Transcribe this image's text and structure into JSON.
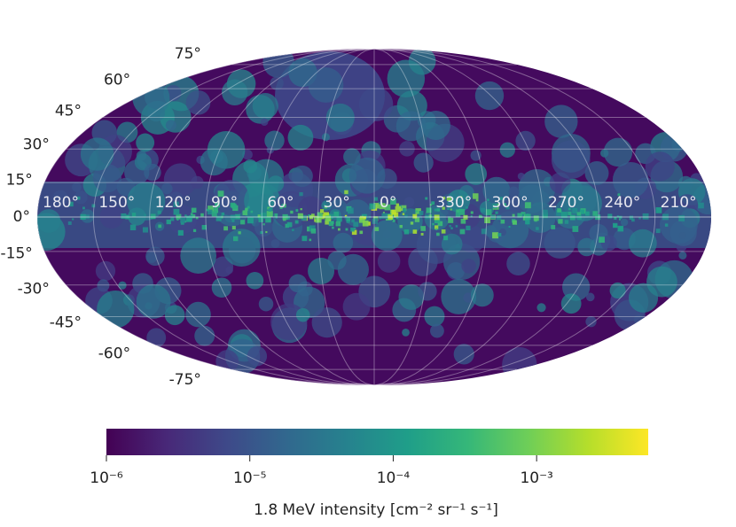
{
  "map": {
    "projection": "mollweide",
    "lat_ticks": [
      {
        "value": 75,
        "label": "75°"
      },
      {
        "value": 60,
        "label": "60°"
      },
      {
        "value": 45,
        "label": "45°"
      },
      {
        "value": 30,
        "label": "30°"
      },
      {
        "value": 15,
        "label": "15°"
      },
      {
        "value": 0,
        "label": "0°"
      },
      {
        "value": -15,
        "label": "-15°"
      },
      {
        "value": -30,
        "label": "-30°"
      },
      {
        "value": -45,
        "label": "-45°"
      },
      {
        "value": -60,
        "label": "-60°"
      },
      {
        "value": -75,
        "label": "-75°"
      }
    ],
    "lon_ticks": [
      {
        "value": 180,
        "label": "180°"
      },
      {
        "value": 150,
        "label": "150°"
      },
      {
        "value": 120,
        "label": "120°"
      },
      {
        "value": 90,
        "label": "90°"
      },
      {
        "value": 60,
        "label": "60°"
      },
      {
        "value": 30,
        "label": "30°"
      },
      {
        "value": 0,
        "label": "0°"
      },
      {
        "value": 330,
        "label": "330°"
      },
      {
        "value": 300,
        "label": "300°"
      },
      {
        "value": 270,
        "label": "270°"
      },
      {
        "value": 240,
        "label": "240°"
      },
      {
        "value": 210,
        "label": "210°"
      }
    ],
    "colorbar": {
      "label": "1.8 MeV intensity [cm⁻² sr⁻¹ s⁻¹]",
      "colormap": "viridis",
      "scale": "log",
      "lim": [
        1e-06,
        0.006
      ],
      "ticks": [
        {
          "value": 1e-06,
          "label": "10⁻⁶"
        },
        {
          "value": 1e-05,
          "label": "10⁻⁵"
        },
        {
          "value": 0.0001,
          "label": "10⁻⁴"
        },
        {
          "value": 0.001,
          "label": "10⁻³"
        }
      ]
    }
  }
}
